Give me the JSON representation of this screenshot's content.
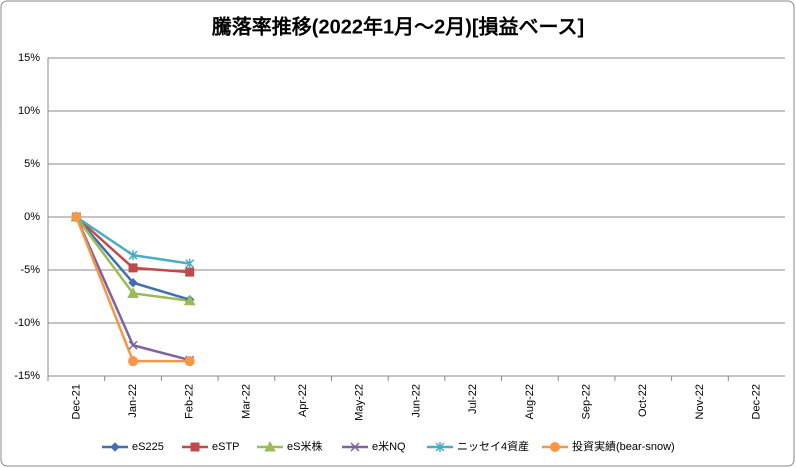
{
  "chart_data": {
    "type": "line",
    "title": "騰落率推移(2022年1月～2月)[損益ベース]",
    "categories": [
      "Dec-21",
      "Jan-22",
      "Feb-22",
      "Mar-22",
      "Apr-22",
      "May-22",
      "Jun-22",
      "Jul-22",
      "Aug-22",
      "Sep-22",
      "Oct-22",
      "Nov-22",
      "Dec-22"
    ],
    "series": [
      {
        "name": "eS225",
        "color": "#3f6fb5",
        "marker": "diamond",
        "values": [
          0,
          -6.2,
          -7.8,
          null,
          null,
          null,
          null,
          null,
          null,
          null,
          null,
          null,
          null
        ]
      },
      {
        "name": "eSTP",
        "color": "#be4b48",
        "marker": "square",
        "values": [
          0,
          -4.8,
          -5.2,
          null,
          null,
          null,
          null,
          null,
          null,
          null,
          null,
          null,
          null
        ]
      },
      {
        "name": "eS米株",
        "color": "#9bbb59",
        "marker": "triangle",
        "values": [
          0,
          -7.2,
          -7.9,
          null,
          null,
          null,
          null,
          null,
          null,
          null,
          null,
          null,
          null
        ]
      },
      {
        "name": "e米NQ",
        "color": "#7f63a1",
        "marker": "x",
        "values": [
          0,
          -12.1,
          -13.5,
          null,
          null,
          null,
          null,
          null,
          null,
          null,
          null,
          null,
          null
        ]
      },
      {
        "name": "ニッセイ4資産",
        "color": "#4bacc6",
        "marker": "star",
        "values": [
          0,
          -3.6,
          -4.4,
          null,
          null,
          null,
          null,
          null,
          null,
          null,
          null,
          null,
          null
        ]
      },
      {
        "name": "投資実績(bear-snow)",
        "color": "#f79646",
        "marker": "circle",
        "values": [
          0,
          -13.6,
          -13.6,
          null,
          null,
          null,
          null,
          null,
          null,
          null,
          null,
          null,
          null
        ]
      }
    ],
    "ylim": [
      -15,
      15
    ],
    "yticks": [
      {
        "value": -15,
        "label": "-15%"
      },
      {
        "value": -10,
        "label": "-10%"
      },
      {
        "value": -5,
        "label": "-5%"
      },
      {
        "value": 0,
        "label": "0%"
      },
      {
        "value": 5,
        "label": "5%"
      },
      {
        "value": 10,
        "label": "10%"
      },
      {
        "value": 15,
        "label": "15%"
      }
    ],
    "grid": true,
    "legend": "bottom"
  }
}
